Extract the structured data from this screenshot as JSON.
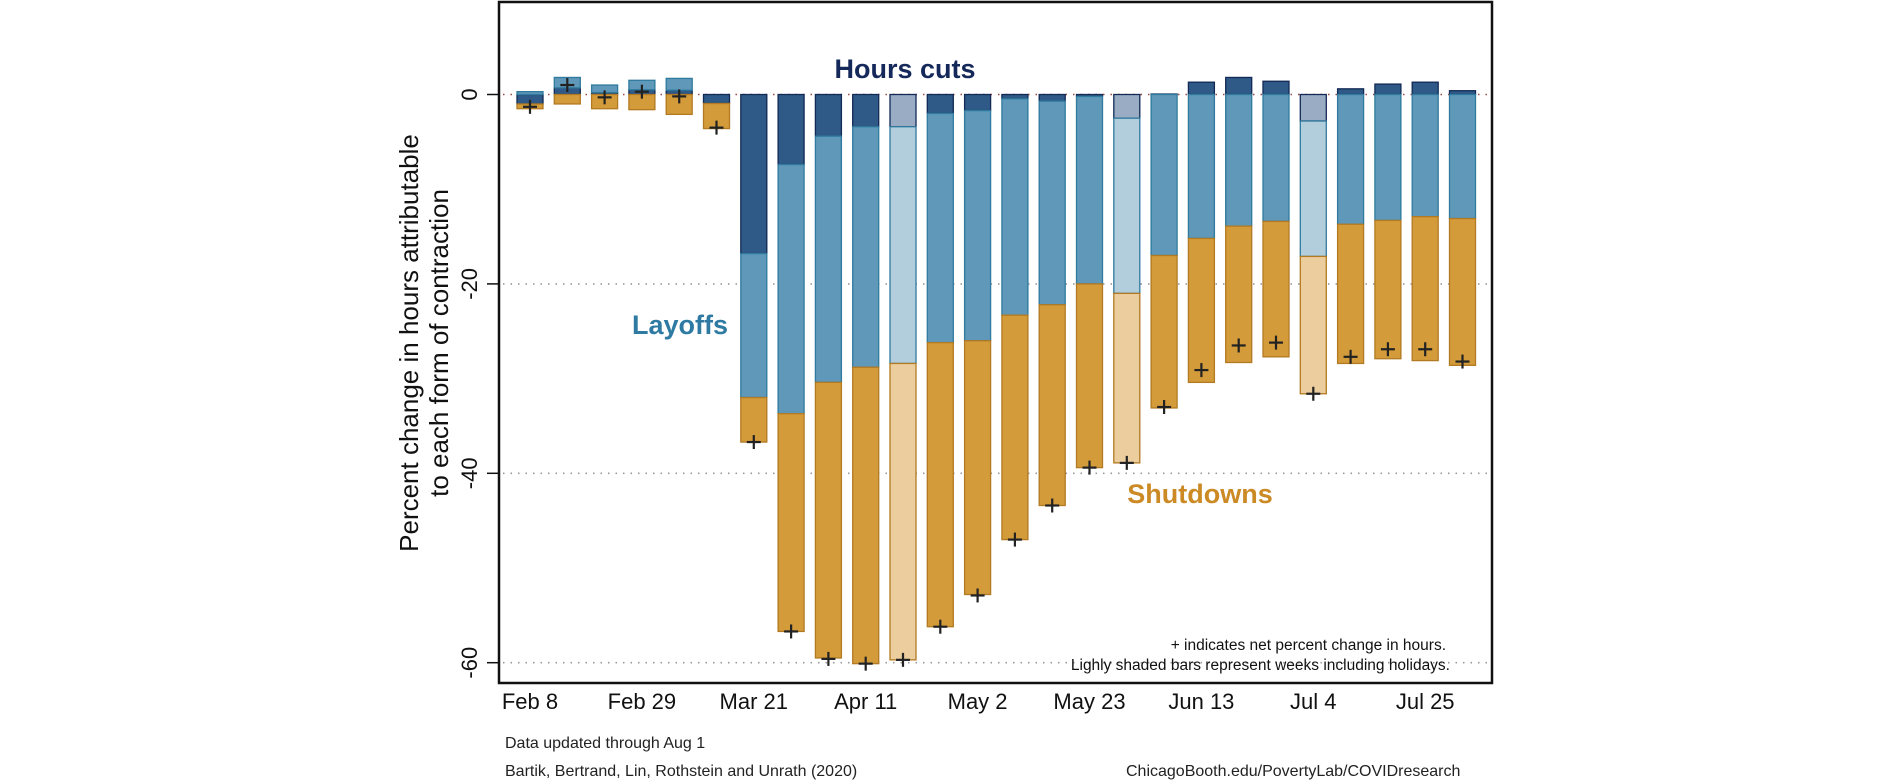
{
  "chart_data": {
    "type": "bar",
    "stacked": true,
    "title": "",
    "xlabel": "",
    "ylabel": "Percent change in hours attributable to each form of contraction",
    "ylabel_lines": [
      "Percent change in hours attributable",
      "to each form of contraction"
    ],
    "ylim": [
      -62.5,
      10
    ],
    "yticks": [
      0,
      -20,
      -40,
      -60
    ],
    "ytick_labels": [
      "0",
      "-20",
      "-40",
      "-60"
    ],
    "grid": true,
    "categories": [
      "Feb 8",
      "Feb 15",
      "Feb 22",
      "Feb 29",
      "Mar 7",
      "Mar 14",
      "Mar 21",
      "Mar 28",
      "Apr 4",
      "Apr 11",
      "Apr 18",
      "Apr 25",
      "May 2",
      "May 9",
      "May 16",
      "May 23",
      "May 30",
      "Jun 6",
      "Jun 13",
      "Jun 20",
      "Jun 27",
      "Jul 4",
      "Jul 11",
      "Jul 18",
      "Jul 25",
      "Aug 1"
    ],
    "xtick_labels": [
      "Feb 8",
      "Feb 29",
      "Mar 21",
      "Apr 11",
      "May 2",
      "May 23",
      "Jun 13",
      "Jul 4",
      "Jul 25"
    ],
    "xtick_indices": [
      0,
      3,
      6,
      9,
      12,
      15,
      18,
      21,
      24
    ],
    "holiday_weeks": [
      10,
      16,
      21
    ],
    "series": [
      {
        "name": "Hours cuts",
        "color": "#2f5987",
        "holiday_color": "#9aabc4",
        "values": [
          -1.0,
          0.7,
          0.2,
          0.5,
          0.45,
          -0.95,
          -16.8,
          -7.4,
          -4.4,
          -3.4,
          -3.4,
          -2.0,
          -1.7,
          -0.45,
          -0.7,
          -0.2,
          -2.5,
          0.05,
          1.3,
          1.8,
          1.4,
          -2.8,
          0.6,
          1.1,
          1.3,
          0.4
        ]
      },
      {
        "name": "Layoffs",
        "color": "#5f98b8",
        "holiday_color": "#b2cedc",
        "values": [
          0.3,
          1.1,
          0.8,
          1.0,
          1.25,
          0.0,
          -15.2,
          -26.3,
          -26.0,
          -25.4,
          -25.0,
          -24.2,
          -24.3,
          -22.85,
          -21.5,
          -19.8,
          -18.5,
          -17.0,
          -15.2,
          -13.9,
          -13.4,
          -14.3,
          -13.7,
          -13.3,
          -12.9,
          -13.1
        ]
      },
      {
        "name": "Shutdowns",
        "color": "#d39b3a",
        "holiday_color": "#ebcd9e",
        "values": [
          -0.5,
          -1.0,
          -1.5,
          -1.6,
          -2.1,
          -2.65,
          -4.7,
          -23.0,
          -29.1,
          -31.3,
          -31.3,
          -30.0,
          -26.8,
          -23.7,
          -21.2,
          -19.4,
          -17.9,
          -16.1,
          -15.2,
          -14.4,
          -14.3,
          -14.5,
          -14.7,
          -14.6,
          -15.2,
          -15.5
        ]
      }
    ],
    "net_change": [
      -1.3,
      1.0,
      -0.3,
      0.3,
      -0.2,
      -3.5,
      -36.7,
      -56.7,
      -59.6,
      -60.1,
      -59.7,
      -56.2,
      -52.9,
      -47.0,
      -43.4,
      -39.4,
      -38.9,
      -33.0,
      -29.1,
      -26.5,
      -26.2,
      -31.6,
      -27.7,
      -26.9,
      -26.9,
      -28.2
    ],
    "series_labels": {
      "hours": {
        "text": "Hours cuts",
        "color": "#15285a"
      },
      "layoffs": {
        "text": "Layoffs",
        "color": "#2e7aa3"
      },
      "shutdowns": {
        "text": "Shutdowns",
        "color": "#cc8a25"
      }
    },
    "annotations": [
      "+ indicates net percent change in hours.",
      "Lighly shaded bars represent weeks including holidays."
    ]
  },
  "footer": {
    "updated": "Data updated through Aug 1",
    "citation": "Bartik, Bertrand, Lin, Rothstein and Unrath (2020)",
    "url": "ChicagoBooth.edu/PovertyLab/COVIDresearch"
  }
}
